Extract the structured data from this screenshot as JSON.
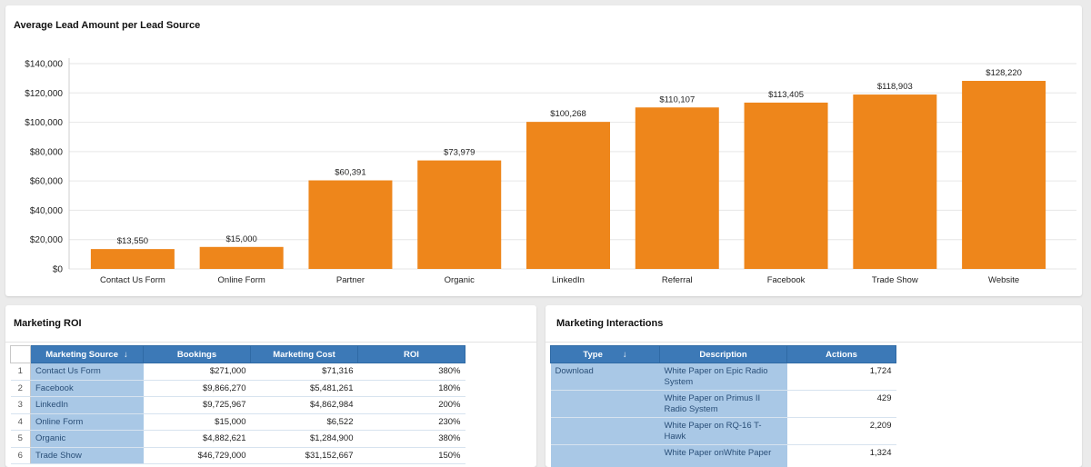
{
  "chart_panel": {
    "title": "Average Lead Amount per Lead Source"
  },
  "chart_data": {
    "type": "bar",
    "title": "Average Lead Amount per Lead Source",
    "categories": [
      "Contact Us Form",
      "Online Form",
      "Partner",
      "Organic",
      "LinkedIn",
      "Referral",
      "Facebook",
      "Trade Show",
      "Website"
    ],
    "values": [
      13550,
      15000,
      60391,
      73979,
      100268,
      110107,
      113405,
      118903,
      128220
    ],
    "value_labels": [
      "$13,550",
      "$15,000",
      "$60,391",
      "$73,979",
      "$100,268",
      "$110,107",
      "$113,405",
      "$118,903",
      "$128,220"
    ],
    "y_ticks": [
      0,
      20000,
      40000,
      60000,
      80000,
      100000,
      120000,
      140000
    ],
    "y_tick_labels": [
      "$0",
      "$20,000",
      "$40,000",
      "$60,000",
      "$80,000",
      "$100,000",
      "$120,000",
      "$140,000"
    ],
    "ylim": [
      0,
      140000
    ],
    "grid": true,
    "bar_color": "#ee861b",
    "xlabel": "",
    "ylabel": ""
  },
  "roi": {
    "title": "Marketing ROI",
    "headers": {
      "source": "Marketing Source",
      "bookings": "Bookings",
      "cost": "Marketing Cost",
      "roi": "ROI"
    },
    "sort_icon": "↓",
    "rows": [
      {
        "idx": "1",
        "source": "Contact Us Form",
        "bookings": "$271,000",
        "cost": "$71,316",
        "roi": "380%"
      },
      {
        "idx": "2",
        "source": "Facebook",
        "bookings": "$9,866,270",
        "cost": "$5,481,261",
        "roi": "180%"
      },
      {
        "idx": "3",
        "source": "LinkedIn",
        "bookings": "$9,725,967",
        "cost": "$4,862,984",
        "roi": "200%"
      },
      {
        "idx": "4",
        "source": "Online Form",
        "bookings": "$15,000",
        "cost": "$6,522",
        "roi": "230%"
      },
      {
        "idx": "5",
        "source": "Organic",
        "bookings": "$4,882,621",
        "cost": "$1,284,900",
        "roi": "380%"
      },
      {
        "idx": "6",
        "source": "Trade Show",
        "bookings": "$46,729,000",
        "cost": "$31,152,667",
        "roi": "150%"
      }
    ]
  },
  "interactions": {
    "title": "Marketing Interactions",
    "headers": {
      "type": "Type",
      "description": "Description",
      "actions": "Actions"
    },
    "sort_icon": "↓",
    "rows": [
      {
        "type": "Download",
        "description": "White Paper on Epic Radio System",
        "actions": "1,724"
      },
      {
        "type": "",
        "description": "White Paper on Primus II Radio System",
        "actions": "429"
      },
      {
        "type": "",
        "description": "White Paper on RQ-16 T-Hawk",
        "actions": "2,209"
      },
      {
        "type": "",
        "description": "White Paper onWhite Paper",
        "actions": "1,324"
      }
    ]
  }
}
